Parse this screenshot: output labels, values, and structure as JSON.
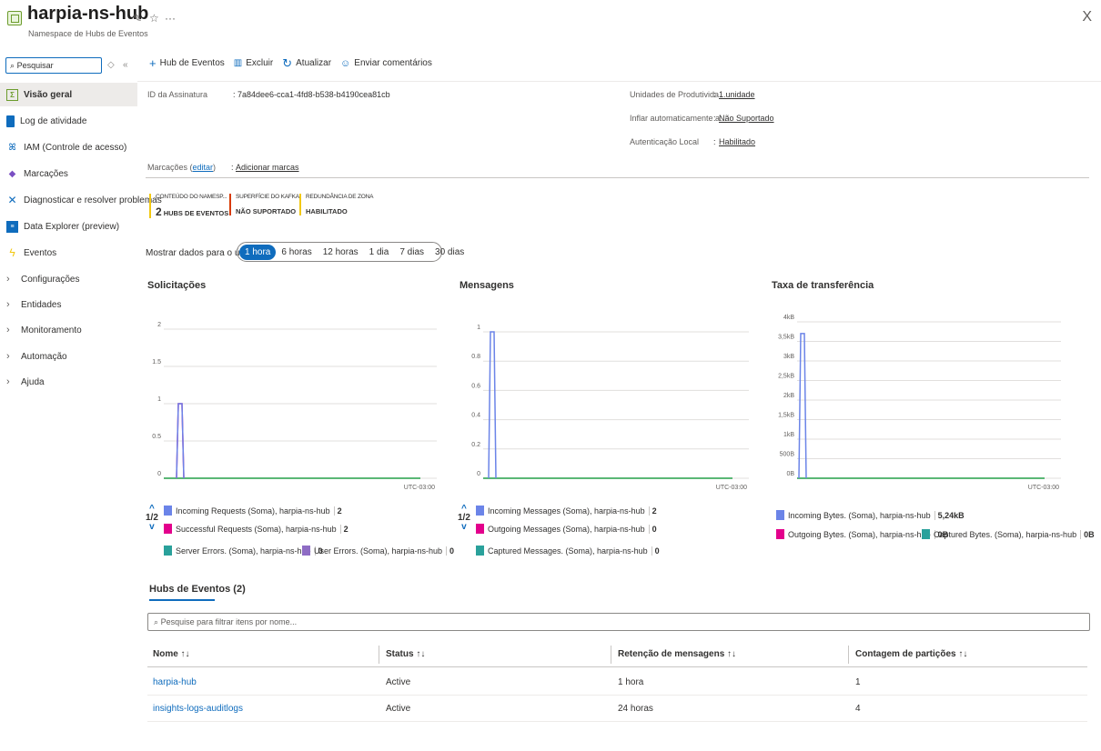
{
  "header": {
    "title": "harpia-ns-hub",
    "subtitle": "Namespace de Hubs de Eventos",
    "more": "···",
    "close": "X"
  },
  "sidebar": {
    "search_placeholder": "Pesquisar",
    "items": [
      {
        "label": "Visão geral"
      },
      {
        "label": "Log de atividade"
      },
      {
        "label": "IAM (Controle de acesso)"
      },
      {
        "label": "Marcações"
      },
      {
        "label": "Diagnosticar e resolver problemas"
      },
      {
        "label": "Data Explorer (preview)"
      },
      {
        "label": "Eventos"
      },
      {
        "label": "Configurações"
      },
      {
        "label": "Entidades"
      },
      {
        "label": "Monitoramento"
      },
      {
        "label": "Automação"
      },
      {
        "label": "Ajuda"
      }
    ]
  },
  "toolbar": {
    "add_hub": "Hub de Eventos",
    "delete": "Excluir",
    "refresh": "Atualizar",
    "feedback": "Enviar comentários"
  },
  "essentials": {
    "subscription_label": "ID da Assinatura",
    "subscription_value": ": 7a84dee6-cca1-4fd8-b538-b4190cea81cb",
    "units_label": "Unidades de Produtivida...",
    "units_value": "1 unidade",
    "autoinflate_label": "Inflar automaticamente a...",
    "autoinflate_value": "Não Suportado",
    "localauth_label": "Autenticação Local",
    "localauth_value": "Habilitado",
    "colon": ":",
    "tags_label": "Marcações (",
    "tags_edit": "editar",
    "tags_close": ")",
    "tags_value": "Adicionar marcas"
  },
  "tiles": [
    {
      "label": "CONTEÚDO DO NAMESP...",
      "count": "2",
      "value": "HUBS DE EVENTOS",
      "color": "#f2c811"
    },
    {
      "label": "SUPERFÍCIE DO KAFKA",
      "count": "",
      "value": "NÃO SUPORTADO",
      "color": "#d83b01"
    },
    {
      "label": "REDUNDÂNCIA DE ZONA",
      "count": "",
      "value": "HABILITADO",
      "color": "#f2c811"
    }
  ],
  "time_range": {
    "label": "Mostrar dados para o último:",
    "options": [
      "1 hora",
      "6 horas",
      "12 horas",
      "1 dia",
      "7 dias",
      "30 dias"
    ],
    "selected": "1 hora"
  },
  "charts": {
    "requests": {
      "title": "Solicitações",
      "tz": "UTC-03:00",
      "pager": "1/2",
      "legend": [
        {
          "name": "Incoming Requests (Soma), harpia-ns-hub",
          "value": "2",
          "color": "#6b84e8"
        },
        {
          "name": "Successful Requests (Soma), harpia-ns-hub",
          "value": "2",
          "color": "#e3008c"
        },
        {
          "name": "Server Errors. (Soma), harpia-ns-hub",
          "value": "0",
          "color": "#2aa19b"
        },
        {
          "name": "User Errors. (Soma), harpia-ns-hub",
          "value": "0",
          "color": "#8e6cc4"
        }
      ]
    },
    "messages": {
      "title": "Mensagens",
      "tz": "UTC-03:00",
      "pager": "1/2",
      "legend": [
        {
          "name": "Incoming Messages (Soma), harpia-ns-hub",
          "value": "2",
          "color": "#6b84e8"
        },
        {
          "name": "Outgoing Messages (Soma), harpia-ns-hub",
          "value": "0",
          "color": "#e3008c"
        },
        {
          "name": "Captured Messages. (Soma), harpia-ns-hub",
          "value": "0",
          "color": "#2aa19b"
        }
      ]
    },
    "throughput": {
      "title": "Taxa de transferência",
      "tz": "UTC-03:00",
      "legend": [
        {
          "name": "Incoming Bytes. (Soma), harpia-ns-hub",
          "value": "5,24kB",
          "color": "#6b84e8"
        },
        {
          "name": "Outgoing Bytes. (Soma), harpia-ns-hub",
          "value": "0B",
          "color": "#e3008c"
        },
        {
          "name": "Captured Bytes. (Soma), harpia-ns-hub",
          "value": "0B",
          "color": "#2aa19b"
        }
      ]
    }
  },
  "chart_data": [
    {
      "type": "line",
      "title": "Solicitações",
      "y_ticks": [
        "2",
        "1.5",
        "1",
        "0.5",
        "0"
      ],
      "ylim": [
        0,
        2
      ],
      "series": [
        {
          "name": "Incoming Requests (Soma), harpia-ns-hub",
          "peak": 1,
          "color": "#6b84e8"
        },
        {
          "name": "Successful Requests (Soma), harpia-ns-hub",
          "peak": 1,
          "color": "#e3008c"
        },
        {
          "name": "Server Errors. (Soma), harpia-ns-hub",
          "peak": 0,
          "color": "#2aa19b"
        },
        {
          "name": "User Errors. (Soma), harpia-ns-hub",
          "peak": 0,
          "color": "#8e6cc4"
        }
      ]
    },
    {
      "type": "line",
      "title": "Mensagens",
      "y_ticks": [
        "1",
        "0.8",
        "0.6",
        "0.4",
        "0.2",
        "0"
      ],
      "ylim": [
        0,
        1
      ],
      "series": [
        {
          "name": "Incoming Messages (Soma), harpia-ns-hub",
          "peak": 1,
          "color": "#6b84e8"
        },
        {
          "name": "Outgoing Messages (Soma), harpia-ns-hub",
          "peak": 0,
          "color": "#e3008c"
        },
        {
          "name": "Captured Messages. (Soma), harpia-ns-hub",
          "peak": 0,
          "color": "#2aa19b"
        }
      ]
    },
    {
      "type": "line",
      "title": "Taxa de transferência",
      "y_ticks": [
        "4kB",
        "3,5kB",
        "3kB",
        "2,5kB",
        "2kB",
        "1,5kB",
        "1kB",
        "500B",
        "0B"
      ],
      "ylim": [
        0,
        4
      ],
      "y_unit": "kB",
      "series": [
        {
          "name": "Incoming Bytes. (Soma), harpia-ns-hub",
          "peak": 3.7,
          "color": "#6b84e8"
        },
        {
          "name": "Outgoing Bytes. (Soma), harpia-ns-hub",
          "peak": 0,
          "color": "#e3008c"
        },
        {
          "name": "Captured Bytes. (Soma), harpia-ns-hub",
          "peak": 0,
          "color": "#2aa19b"
        }
      ]
    }
  ],
  "hubs": {
    "tab_title": "Hubs de Eventos (2)",
    "filter_placeholder": "Pesquise para filtrar itens por nome...",
    "columns": [
      "Nome ↑↓",
      "Status ↑↓",
      "Retenção de mensagens ↑↓",
      "Contagem de partições ↑↓"
    ],
    "rows": [
      {
        "name": "harpia-hub",
        "status": "Active",
        "retention": "1 hora",
        "partitions": "1"
      },
      {
        "name": "insights-logs-auditlogs",
        "status": "Active",
        "retention": "24 horas",
        "partitions": "4"
      }
    ]
  },
  "colors": {
    "accent": "#0f6cbd",
    "series_blue": "#6b84e8",
    "series_pink": "#e3008c",
    "series_green": "#2aa19b",
    "series_purple": "#8e6cc4",
    "baseline_green": "#24a148"
  }
}
